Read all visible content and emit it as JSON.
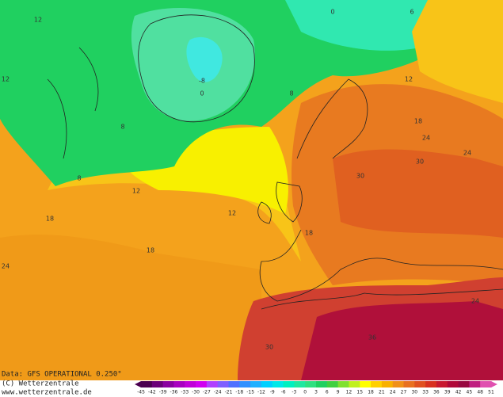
{
  "footer": {
    "data_source": "Data: GFS OPERATIONAL 0.250°",
    "copyright": "(C) Wetterzentrale",
    "website": "www.wetterzentrale.de"
  },
  "legend": {
    "ticks": [
      -45,
      -42,
      -39,
      -36,
      -33,
      -30,
      -27,
      -24,
      -21,
      -18,
      -15,
      -12,
      -9,
      -6,
      -3,
      0,
      3,
      6,
      9,
      12,
      15,
      18,
      21,
      24,
      27,
      30,
      33,
      36,
      39,
      42,
      45,
      48,
      51
    ],
    "colors": [
      "#4b0050",
      "#6a0078",
      "#8a00a0",
      "#a800c0",
      "#c000d8",
      "#d000f0",
      "#b040ff",
      "#8060ff",
      "#5070ff",
      "#3090ff",
      "#20b0ff",
      "#00d0ff",
      "#00e8e8",
      "#00f0c0",
      "#20e8a0",
      "#30e080",
      "#20d060",
      "#40d040",
      "#80e030",
      "#c0f020",
      "#ffff00",
      "#ffd000",
      "#f8b000",
      "#f09018",
      "#e87020",
      "#e05020",
      "#d83020",
      "#c81830",
      "#b00838",
      "#980840",
      "#c02080",
      "#e050b0"
    ]
  },
  "map_labels": [
    12,
    12,
    8,
    0,
    -8,
    12,
    12,
    18,
    18,
    24,
    18,
    24,
    30,
    30,
    24,
    18,
    12,
    36,
    30,
    6,
    8,
    8,
    0,
    24
  ]
}
